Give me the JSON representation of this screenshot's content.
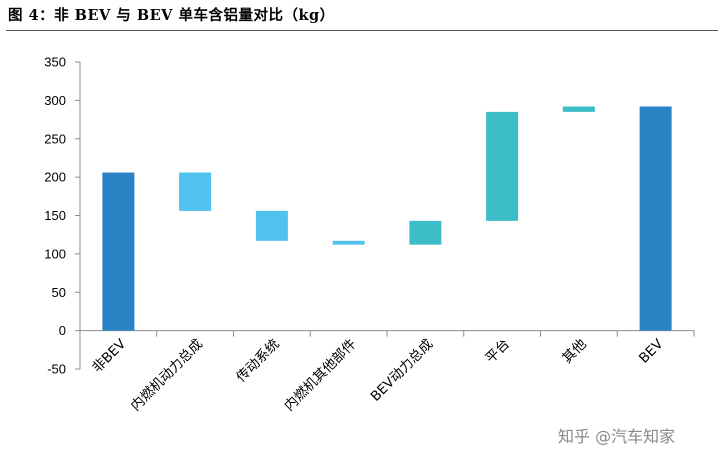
{
  "figure": {
    "title": "图  4：非 BEV 与 BEV 单车含铝量对比（kg）",
    "watermark": "知乎 @汽车知家"
  },
  "colors": {
    "total": "#2B83C6",
    "drop": "#4FC3EE",
    "rise": "#3DBDC8",
    "axis": "#8c8c8c"
  },
  "chart_data": {
    "type": "bar",
    "subtype": "waterfall",
    "title": "",
    "xlabel": "",
    "ylabel": "",
    "ylim": [
      -50,
      350
    ],
    "yticks": [
      -50,
      0,
      50,
      100,
      150,
      200,
      250,
      300,
      350
    ],
    "grid": false,
    "legend": "none",
    "categories": [
      "非BEV",
      "内燃机动力总成",
      "传动系统",
      "内燃机其他部件",
      "BEV动力总成",
      "平台",
      "其他",
      "BEV"
    ],
    "bars": [
      {
        "category": "非BEV",
        "kind": "total",
        "start": 0,
        "end": 206
      },
      {
        "category": "内燃机动力总成",
        "kind": "drop",
        "start": 206,
        "end": 156
      },
      {
        "category": "传动系统",
        "kind": "drop",
        "start": 156,
        "end": 117
      },
      {
        "category": "内燃机其他部件",
        "kind": "drop",
        "start": 117,
        "end": 112
      },
      {
        "category": "BEV动力总成",
        "kind": "rise",
        "start": 112,
        "end": 143
      },
      {
        "category": "平台",
        "kind": "rise",
        "start": 143,
        "end": 285
      },
      {
        "category": "其他",
        "kind": "rise",
        "start": 285,
        "end": 292
      },
      {
        "category": "BEV",
        "kind": "total",
        "start": 0,
        "end": 292
      }
    ]
  }
}
